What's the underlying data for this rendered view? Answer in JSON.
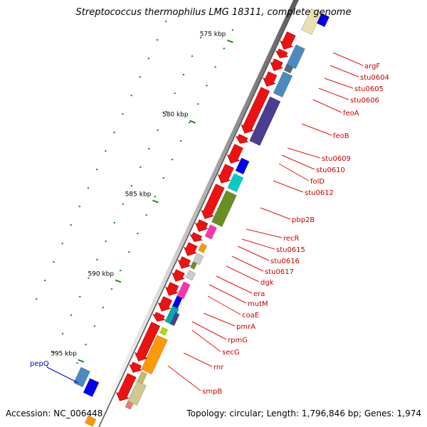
{
  "title": "Streptococcus thermophilus LMG 18311, complete genome",
  "footer": {
    "accession": "Accession: NC_006448",
    "summary": "Topology: circular; Length: 1,796,846 bp; Genes: 1,974"
  },
  "scale_labels": [
    "575 kbp",
    "580 kbp",
    "585 kbp",
    "590 kbp",
    "595 kbp"
  ],
  "colors": {
    "forward_gene": "#ee1111",
    "backbone": "#a8a8a8",
    "tick": "#1a8a1a",
    "label_line": "#ee1111",
    "label_text": "#cc0000",
    "highlight_label": "#0000cc"
  },
  "gene_labels": [
    {
      "name": "argF",
      "color": "#cc0000"
    },
    {
      "name": "stu0604",
      "color": "#cc0000"
    },
    {
      "name": "stu0605",
      "color": "#cc0000"
    },
    {
      "name": "stu0606",
      "color": "#cc0000"
    },
    {
      "name": "feoA",
      "color": "#cc0000"
    },
    {
      "name": "feoB",
      "color": "#cc0000"
    },
    {
      "name": "stu0609",
      "color": "#cc0000"
    },
    {
      "name": "stu0610",
      "color": "#cc0000"
    },
    {
      "name": "folD",
      "color": "#cc0000"
    },
    {
      "name": "stu0612",
      "color": "#cc0000"
    },
    {
      "name": "pbp2B",
      "color": "#cc0000"
    },
    {
      "name": "recR",
      "color": "#cc0000"
    },
    {
      "name": "stu0615",
      "color": "#cc0000"
    },
    {
      "name": "stu0616",
      "color": "#cc0000"
    },
    {
      "name": "stu0617",
      "color": "#cc0000"
    },
    {
      "name": "dgk",
      "color": "#cc0000"
    },
    {
      "name": "era",
      "color": "#cc0000"
    },
    {
      "name": "mutM",
      "color": "#cc0000"
    },
    {
      "name": "coaE",
      "color": "#cc0000"
    },
    {
      "name": "pmrA",
      "color": "#cc0000"
    },
    {
      "name": "rpmG",
      "color": "#cc0000"
    },
    {
      "name": "secG",
      "color": "#cc0000"
    },
    {
      "name": "rnr",
      "color": "#cc0000"
    },
    {
      "name": "smpB",
      "color": "#cc0000"
    },
    {
      "name": "pepQ",
      "color": "#0000cc"
    }
  ],
  "cog_color_blocks": [
    "#e8e0b0",
    "#0000ee",
    "#4a8ac0",
    "#556677",
    "#4a8ac0",
    "#4b3d8f",
    "#0000ee",
    "#00cccc",
    "#6b8e23",
    "#ff33aa",
    "#ff9900",
    "#cccccc",
    "#6b8e23",
    "#cccccc",
    "#ff33aa",
    "#0000ee",
    "#00aaaa",
    "#4b3d8f",
    "#aadd00",
    "#ff9900",
    "#c8b870",
    "#ee7777",
    "#d0c890",
    "#4a8ac0",
    "#0000ee",
    "#ff9900"
  ]
}
